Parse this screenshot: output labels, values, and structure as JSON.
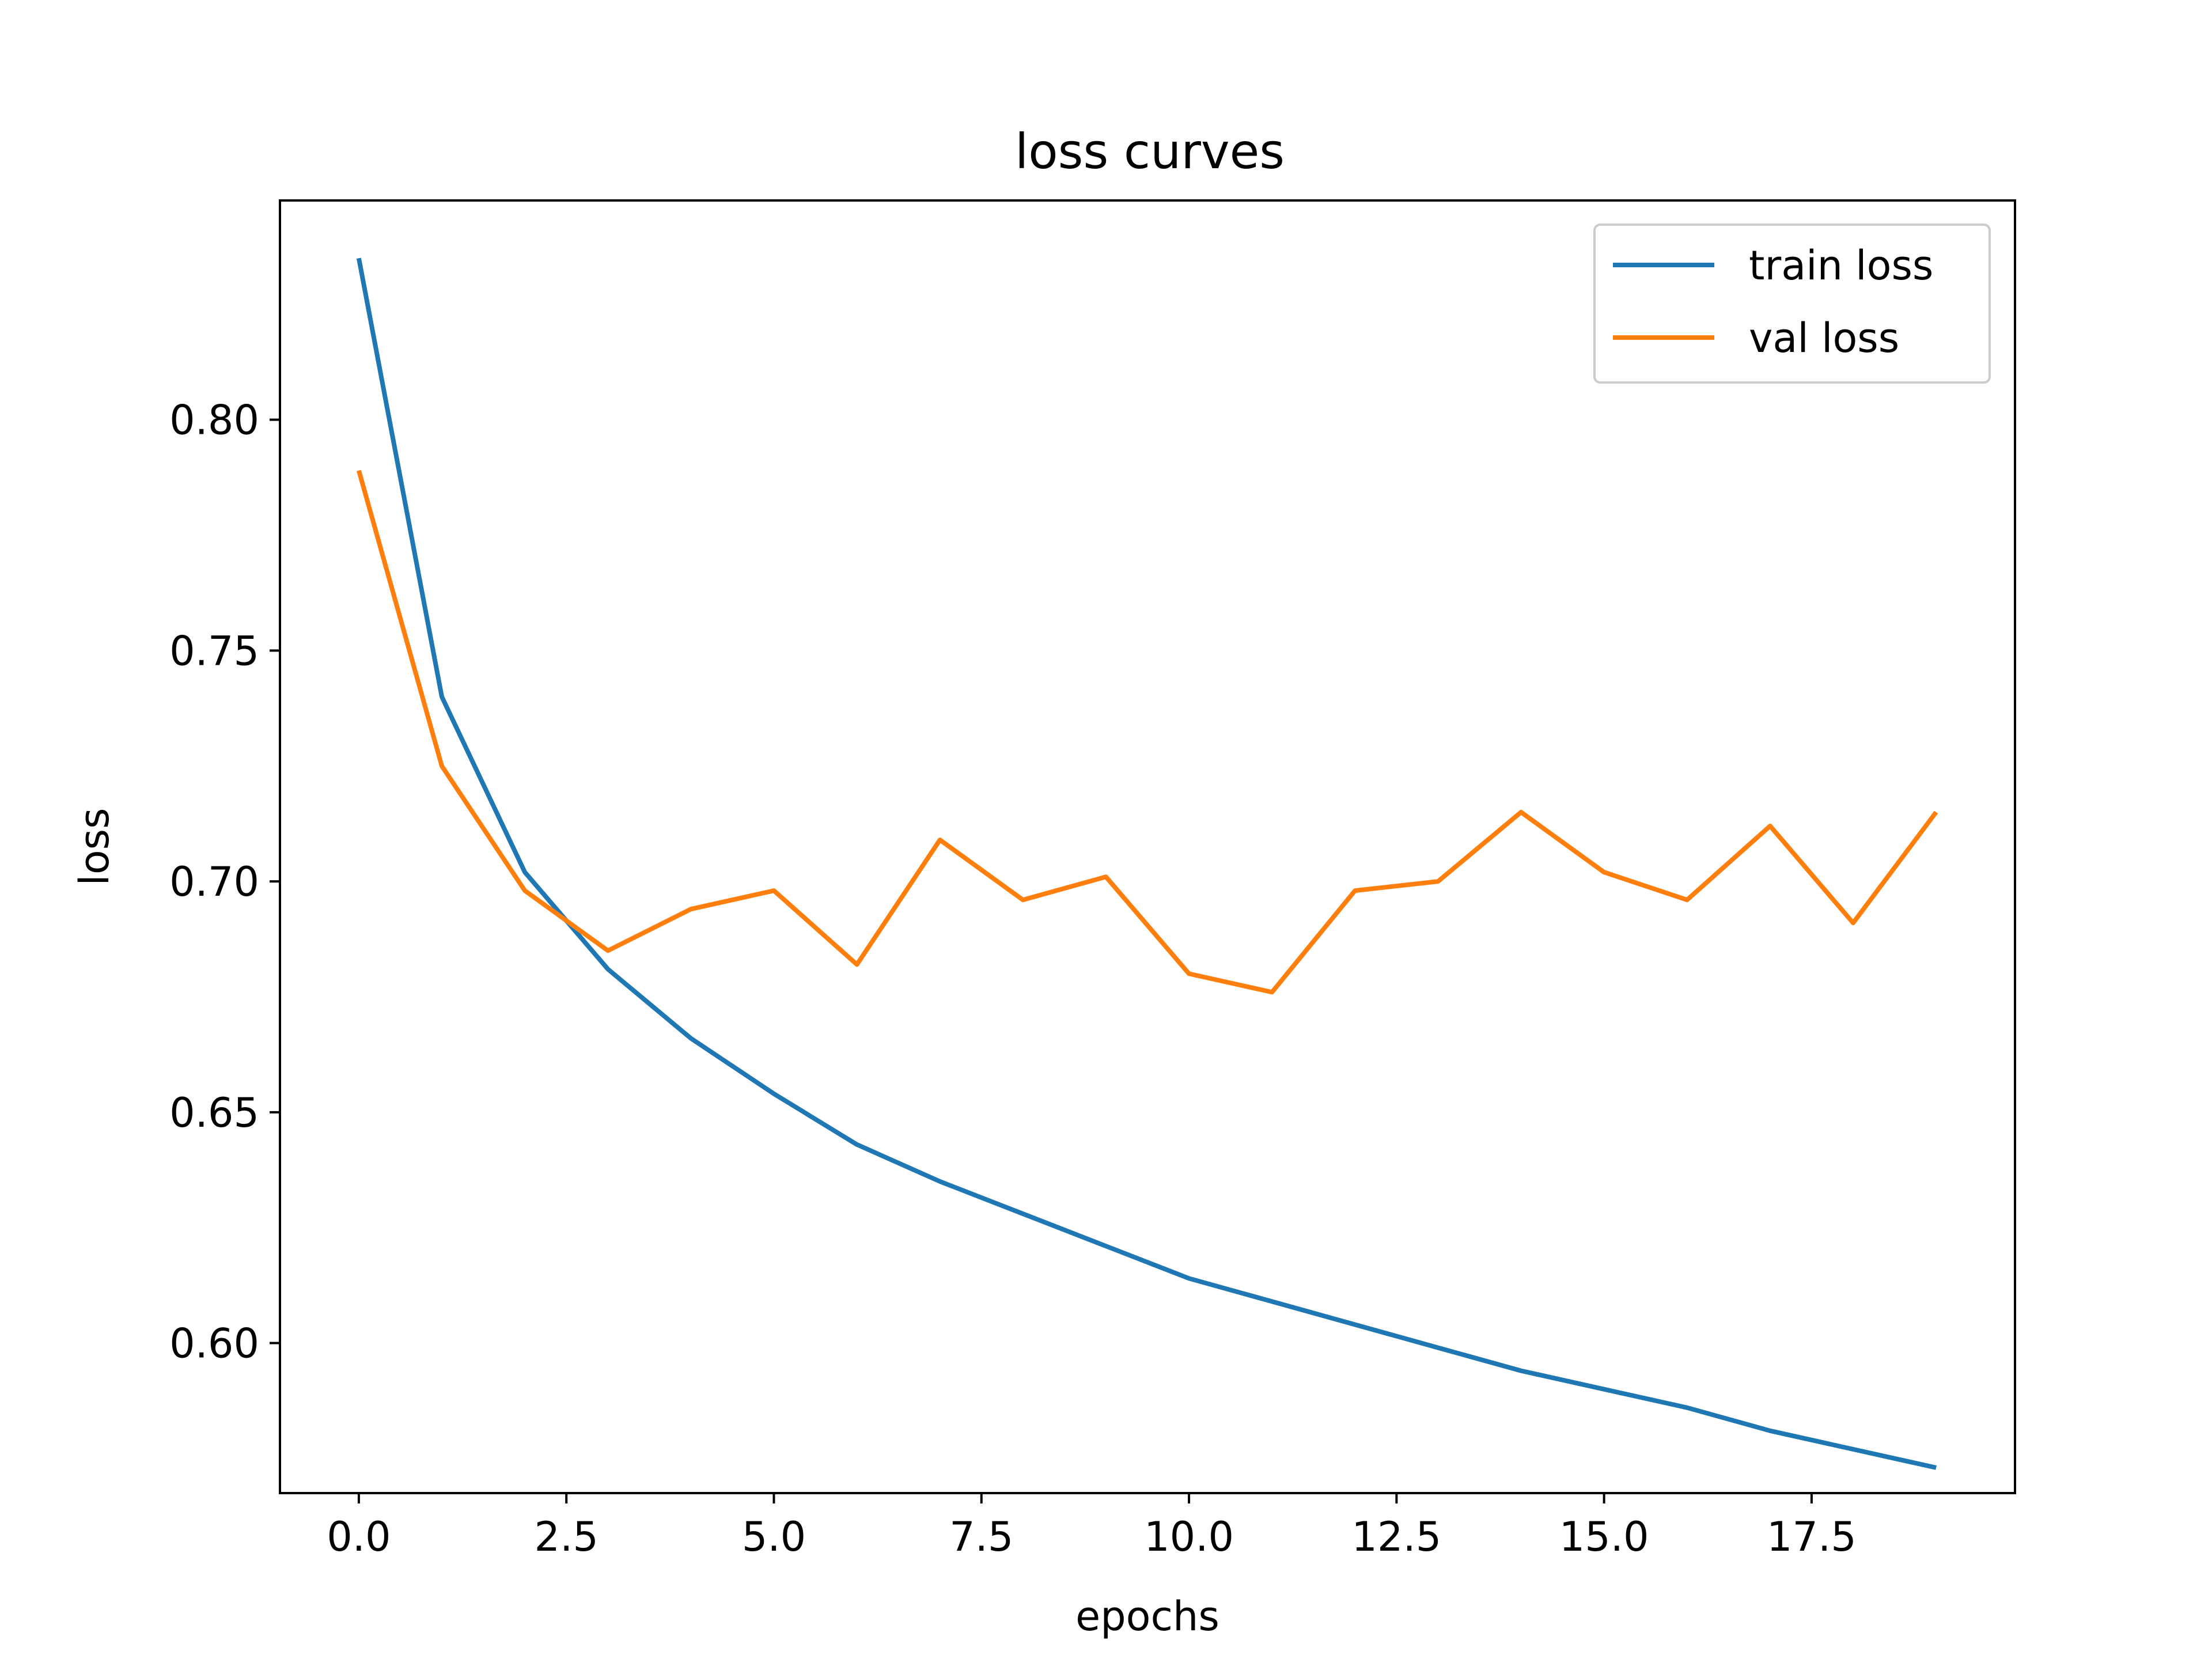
{
  "chart_data": {
    "type": "line",
    "title": "loss curves",
    "xlabel": "epochs",
    "ylabel": "loss",
    "xlim": [
      -0.95,
      19.95
    ],
    "ylim": [
      0.5675,
      0.8475
    ],
    "xticks": [
      0.0,
      2.5,
      5.0,
      7.5,
      10.0,
      12.5,
      15.0,
      17.5
    ],
    "xtick_labels": [
      "0.0",
      "2.5",
      "5.0",
      "7.5",
      "10.0",
      "12.5",
      "15.0",
      "17.5"
    ],
    "yticks": [
      0.6,
      0.65,
      0.7,
      0.75,
      0.8
    ],
    "ytick_labels": [
      "0.60",
      "0.65",
      "0.70",
      "0.75",
      "0.80"
    ],
    "grid": false,
    "legend_position": "top-right",
    "x": [
      0,
      1,
      2,
      3,
      4,
      5,
      6,
      7,
      8,
      9,
      10,
      11,
      12,
      13,
      14,
      15,
      16,
      17,
      18,
      19
    ],
    "series": [
      {
        "name": "train loss",
        "color": "#1f77b4",
        "values": [
          0.835,
          0.74,
          0.702,
          0.681,
          0.666,
          0.654,
          0.643,
          0.635,
          0.628,
          0.621,
          0.614,
          0.609,
          0.604,
          0.599,
          0.594,
          0.59,
          0.586,
          0.581,
          0.577,
          0.573
        ]
      },
      {
        "name": "val loss",
        "color": "#ff7f0e",
        "values": [
          0.789,
          0.725,
          0.698,
          0.685,
          0.694,
          0.698,
          0.682,
          0.709,
          0.696,
          0.701,
          0.68,
          0.676,
          0.698,
          0.7,
          0.715,
          0.702,
          0.696,
          0.712,
          0.691,
          0.715
        ]
      }
    ]
  }
}
